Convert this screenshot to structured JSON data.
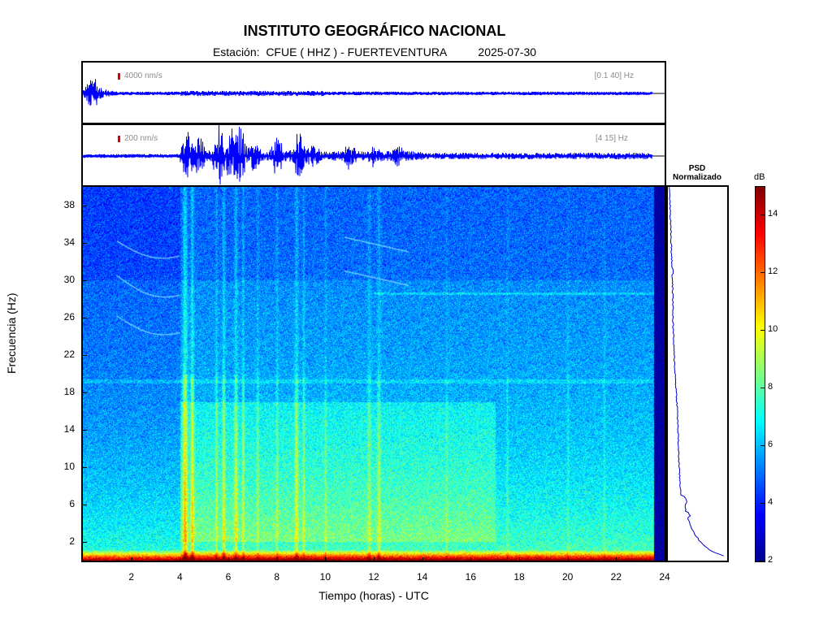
{
  "header": {
    "title": "INSTITUTO GEOGRÁFICO NACIONAL",
    "station_prefix": "Estación:",
    "station": "CFUE ( HHZ ) - FUERTEVENTURA",
    "date": "2025-07-30"
  },
  "traces": [
    {
      "scale_label": "4000 nm/s",
      "band_label": "[0.1 40] Hz"
    },
    {
      "scale_label": "200 nm/s",
      "band_label": "[4 15] Hz"
    }
  ],
  "psd": {
    "title_line1": "PSD",
    "title_line2": "Normalizado"
  },
  "colorbar": {
    "unit": "dB",
    "min": 2,
    "max": 15,
    "ticks": [
      2,
      4,
      6,
      8,
      10,
      12,
      14
    ]
  },
  "chart_data": {
    "type": "heatmap",
    "xlabel": "Tiempo (horas) - UTC",
    "ylabel": "Frecuencia  (Hz)",
    "xlim": [
      0,
      24
    ],
    "ylim": [
      0,
      40
    ],
    "xticks": [
      2,
      4,
      6,
      8,
      10,
      12,
      14,
      16,
      18,
      20,
      22,
      24
    ],
    "yticks": [
      2,
      6,
      10,
      14,
      18,
      22,
      26,
      30,
      34,
      38
    ],
    "colormap": "jet",
    "psd_profile": {
      "freq_hz": [
        0.5,
        1,
        2,
        3,
        4,
        5,
        6,
        7,
        8,
        10,
        12,
        14,
        16,
        18,
        20,
        22,
        24,
        26,
        28,
        30,
        32,
        34,
        36,
        38,
        40
      ],
      "normalized": [
        1.0,
        0.78,
        0.58,
        0.46,
        0.39,
        0.33,
        0.3,
        0.24,
        0.22,
        0.2,
        0.19,
        0.18,
        0.17,
        0.15,
        0.13,
        0.11,
        0.1,
        0.09,
        0.09,
        0.08,
        0.07,
        0.06,
        0.05,
        0.04,
        0.03
      ]
    }
  }
}
